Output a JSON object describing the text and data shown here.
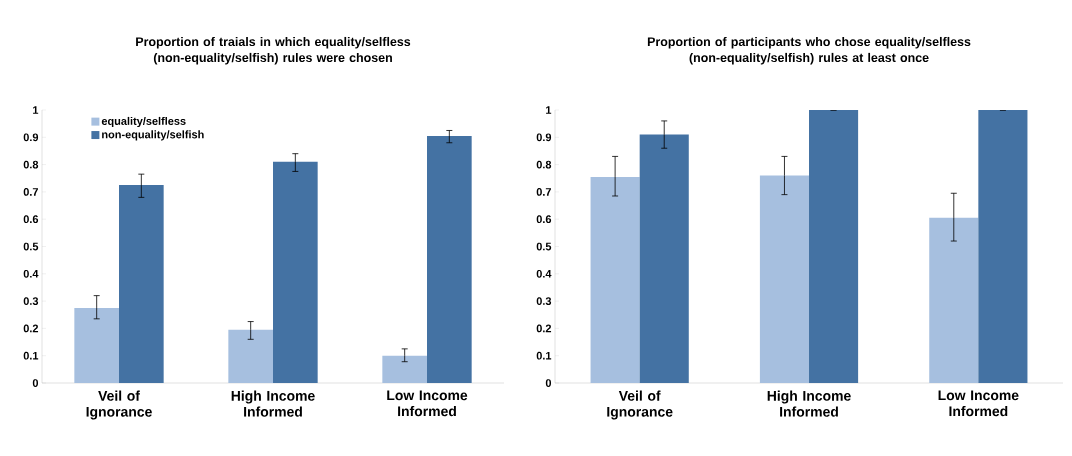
{
  "chart_data": [
    {
      "type": "bar",
      "title": "Proportion of traials in which equality/selfless (non-equality/selfish) rules were chosen",
      "categories": [
        "Veil of Ignorance",
        "High Income Informed",
        "Low Income Informed"
      ],
      "ylim": [
        0,
        1
      ],
      "yticks": [
        0,
        0.1,
        0.2,
        0.3,
        0.4,
        0.5,
        0.6,
        0.7,
        0.8,
        0.9,
        1
      ],
      "grid": false,
      "legend": "top left",
      "series": [
        {
          "name": "equality/selfless",
          "color": "#a6bfdf",
          "values": [
            0.275,
            0.195,
            0.1
          ],
          "errors": [
            [
              0.235,
              0.32
            ],
            [
              0.16,
              0.225
            ],
            [
              0.078,
              0.125
            ]
          ]
        },
        {
          "name": "non-equality/selfish",
          "color": "#4472a3",
          "values": [
            0.725,
            0.81,
            0.905
          ],
          "errors": [
            [
              0.68,
              0.765
            ],
            [
              0.775,
              0.84
            ],
            [
              0.88,
              0.925
            ]
          ]
        }
      ]
    },
    {
      "type": "bar",
      "title": "Proportion of participants who chose equality/selfless (non-equality/selfish) rules at least once",
      "categories": [
        "Veil of Ignorance",
        "High Income Informed",
        "Low Income Informed"
      ],
      "ylim": [
        0,
        1
      ],
      "yticks": [
        0,
        0.1,
        0.2,
        0.3,
        0.4,
        0.5,
        0.6,
        0.7,
        0.8,
        0.9,
        1
      ],
      "grid": false,
      "series": [
        {
          "color": "#a6bfdf",
          "values": [
            0.755,
            0.76,
            0.605
          ],
          "errors": [
            [
              0.685,
              0.83
            ],
            [
              0.69,
              0.83
            ],
            [
              0.52,
              0.695
            ]
          ]
        },
        {
          "color": "#4472a3",
          "values": [
            0.91,
            1,
            1
          ],
          "errors": [
            [
              0.86,
              0.96
            ],
            [
              1,
              1
            ],
            [
              1,
              1
            ]
          ]
        }
      ]
    }
  ]
}
